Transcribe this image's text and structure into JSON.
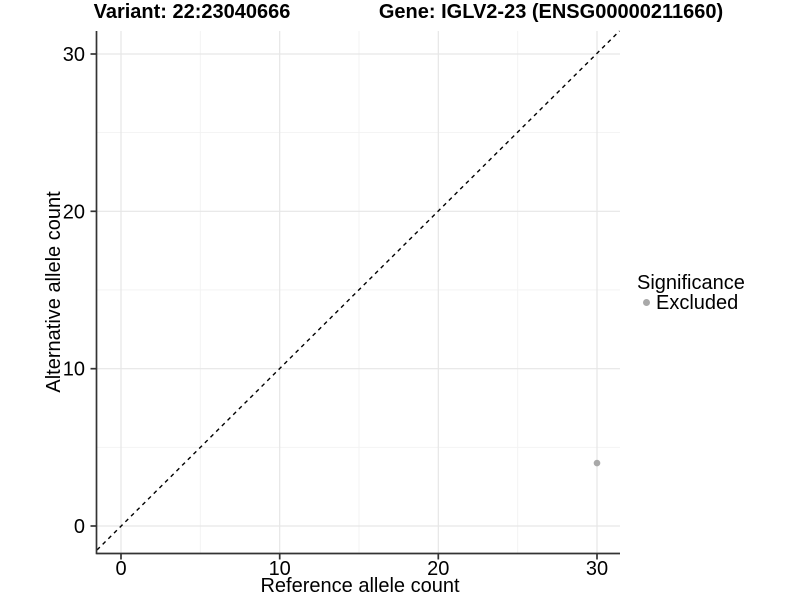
{
  "chart_data": {
    "type": "scatter",
    "titles": {
      "variant": "Variant: 22:23040666",
      "gene": "Gene: IGLV2-23 (ENSG00000211660)"
    },
    "xlabel": "Reference allele count",
    "ylabel": "Alternative allele count",
    "xlim": [
      -1.5,
      31.5
    ],
    "ylim": [
      -1.8,
      31.5
    ],
    "x_ticks": [
      0,
      10,
      20,
      30
    ],
    "y_ticks": [
      0,
      10,
      20,
      30
    ],
    "x_tick_labels": [
      "0",
      "10",
      "20",
      "30"
    ],
    "y_tick_labels": [
      "0",
      "10",
      "20",
      "30"
    ],
    "grid": "major and minor gridlines on white panel",
    "series": [
      {
        "name": "Excluded",
        "color": "#a9a9a9",
        "points": [
          {
            "x": 30,
            "y": 4
          }
        ]
      }
    ],
    "reference_line": {
      "kind": "identity y=x",
      "style": "dashed",
      "color": "#000000"
    },
    "legend": {
      "title": "Significance",
      "position": "right",
      "entries": [
        {
          "label": "Excluded",
          "color": "#a9a9a9"
        }
      ]
    },
    "colors": {
      "axis": "#333333",
      "grid_major": "#e6e6e6",
      "grid_minor": "#f2f2f2",
      "point": "#a9a9a9",
      "text": "#000000",
      "background": "#ffffff"
    }
  }
}
